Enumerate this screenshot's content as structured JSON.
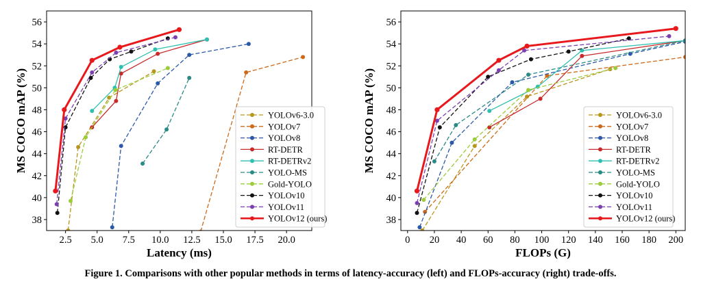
{
  "caption": {
    "prefix": "Figure 1.",
    "text": "Comparisons with other popular methods in terms of latency-accuracy (left) and FLOPs-accuracy (right) trade-offs."
  },
  "chart_data": [
    {
      "type": "line",
      "xlabel": "Latency (ms)",
      "ylabel": "MS COCO mAP (%)",
      "xlim": [
        1.0,
        22.0
      ],
      "ylim": [
        37.0,
        57.0
      ],
      "xticks": [
        2.5,
        5.0,
        7.5,
        10.0,
        12.5,
        15.0,
        17.5,
        20.0
      ],
      "xtick_labels": [
        "2.5",
        "5.0",
        "7.5",
        "10.0",
        "12.5",
        "15.0",
        "17.5",
        "20.0"
      ],
      "yticks": [
        38,
        40,
        42,
        44,
        46,
        48,
        50,
        52,
        54,
        56
      ],
      "grid": false,
      "legend_position": "lower-right",
      "series": [
        {
          "name": "YOLOv6-3.0",
          "color": "#b8961c",
          "style": "dashed",
          "points": [
            [
              2.7,
              37.0
            ],
            [
              3.5,
              44.6
            ],
            [
              5.95,
              49.1
            ],
            [
              9.5,
              51.5
            ]
          ]
        },
        {
          "name": "YOLOv7",
          "color": "#cc6a1a",
          "style": "dashed",
          "points": [
            [
              13.2,
              36.9
            ],
            [
              16.8,
              51.4
            ],
            [
              21.3,
              52.8
            ]
          ]
        },
        {
          "name": "YOLOv8",
          "color": "#2b58a8",
          "style": "dashed",
          "points": [
            [
              6.2,
              37.3
            ],
            [
              6.9,
              44.7
            ],
            [
              9.8,
              50.4
            ],
            [
              12.3,
              53.0
            ],
            [
              17.0,
              54.0
            ]
          ]
        },
        {
          "name": "RT-DETR",
          "color": "#c82a2a",
          "style": "solid",
          "points": [
            [
              4.6,
              46.4
            ],
            [
              6.5,
              48.8
            ],
            [
              6.9,
              51.3
            ],
            [
              9.8,
              53.1
            ],
            [
              13.7,
              54.4
            ]
          ]
        },
        {
          "name": "RT-DETRv2",
          "color": "#2fbfb0",
          "style": "solid",
          "points": [
            [
              4.6,
              47.9
            ],
            [
              6.4,
              50.0
            ],
            [
              6.9,
              51.9
            ],
            [
              9.6,
              53.5
            ],
            [
              13.7,
              54.4
            ]
          ]
        },
        {
          "name": "YOLO-MS",
          "color": "#2a8a86",
          "style": "dashed",
          "points": [
            [
              8.6,
              43.1
            ],
            [
              10.5,
              46.2
            ],
            [
              12.3,
              50.9
            ]
          ]
        },
        {
          "name": "Gold-YOLO",
          "color": "#9ccc3c",
          "style": "dashed",
          "points": [
            [
              2.9,
              39.7
            ],
            [
              4.1,
              45.5
            ],
            [
              6.45,
              49.8
            ],
            [
              10.6,
              51.8
            ]
          ]
        },
        {
          "name": "YOLOv10",
          "color": "#111111",
          "style": "dashed",
          "points": [
            [
              1.85,
              38.6
            ],
            [
              2.5,
              46.4
            ],
            [
              4.5,
              50.9
            ],
            [
              6.0,
              52.6
            ],
            [
              7.7,
              53.3
            ],
            [
              10.6,
              54.5
            ]
          ]
        },
        {
          "name": "YOLOv11",
          "color": "#7b3fb0",
          "style": "dashed",
          "points": [
            [
              1.8,
              39.4
            ],
            [
              2.5,
              47.2
            ],
            [
              4.6,
              51.4
            ],
            [
              6.5,
              53.2
            ],
            [
              11.2,
              54.6
            ]
          ]
        },
        {
          "name": "YOLOv12 (ours)",
          "color": "#e8191d",
          "style": "solid-bold",
          "points": [
            [
              1.7,
              40.6
            ],
            [
              2.4,
              48.0
            ],
            [
              4.6,
              52.5
            ],
            [
              6.8,
              53.7
            ],
            [
              11.5,
              55.3
            ]
          ]
        }
      ]
    },
    {
      "type": "line",
      "xlabel": "FLOPs (G)",
      "ylabel": "MS COCO mAP (%)",
      "xlim": [
        -5,
        207
      ],
      "ylim": [
        37.0,
        57.0
      ],
      "xticks": [
        0,
        20,
        40,
        60,
        80,
        100,
        120,
        140,
        160,
        180,
        200
      ],
      "xtick_labels": [
        "0",
        "20",
        "40",
        "60",
        "80",
        "100",
        "120",
        "140",
        "160",
        "180",
        "200"
      ],
      "yticks": [
        38,
        40,
        42,
        44,
        46,
        48,
        50,
        52,
        54,
        56
      ],
      "grid": false,
      "legend_position": "lower-right",
      "series": [
        {
          "name": "YOLOv6-3.0",
          "color": "#b8961c",
          "style": "dashed",
          "points": [
            [
              11,
              37.0
            ],
            [
              50,
              44.7
            ],
            [
              89,
              49.2
            ],
            [
              151,
              51.7
            ]
          ]
        },
        {
          "name": "YOLOv7",
          "color": "#cc6a1a",
          "style": "dashed",
          "points": [
            [
              13,
              38.7
            ],
            [
              104,
              51.1
            ],
            [
              207,
              52.8
            ]
          ]
        },
        {
          "name": "YOLOv8",
          "color": "#2b58a8",
          "style": "dashed",
          "points": [
            [
              9,
              37.3
            ],
            [
              33,
              45.0
            ],
            [
              78,
              50.5
            ],
            [
              166,
              53.1
            ],
            [
              207,
              54.2
            ]
          ]
        },
        {
          "name": "RT-DETR",
          "color": "#c82a2a",
          "style": "solid",
          "points": [
            [
              61,
              46.4
            ],
            [
              99,
              49.0
            ],
            [
              130,
              52.9
            ],
            [
              207,
              54.3
            ]
          ]
        },
        {
          "name": "RT-DETRv2",
          "color": "#2fbfb0",
          "style": "solid",
          "points": [
            [
              61,
              47.9
            ],
            [
              97,
              50.1
            ],
            [
              130,
              53.4
            ],
            [
              207,
              54.3
            ]
          ]
        },
        {
          "name": "YOLO-MS",
          "color": "#2a8a86",
          "style": "dashed",
          "points": [
            [
              20,
              43.3
            ],
            [
              36,
              46.6
            ],
            [
              90,
              51.2
            ],
            [
              207,
              54.3
            ]
          ]
        },
        {
          "name": "Gold-YOLO",
          "color": "#9ccc3c",
          "style": "dashed",
          "points": [
            [
              12,
              39.8
            ],
            [
              50,
              45.3
            ],
            [
              90,
              49.8
            ],
            [
              155,
              51.8
            ]
          ]
        },
        {
          "name": "YOLOv10",
          "color": "#111111",
          "style": "dashed",
          "points": [
            [
              7,
              38.6
            ],
            [
              24,
              46.4
            ],
            [
              60,
              51.0
            ],
            [
              92,
              52.6
            ],
            [
              120,
              53.3
            ],
            [
              165,
              54.5
            ]
          ]
        },
        {
          "name": "YOLOv11",
          "color": "#7b3fb0",
          "style": "dashed",
          "points": [
            [
              7,
              39.5
            ],
            [
              22,
              47.0
            ],
            [
              68,
              51.6
            ],
            [
              87,
              53.4
            ],
            [
              195,
              54.7
            ]
          ]
        },
        {
          "name": "YOLOv12 (ours)",
          "color": "#e8191d",
          "style": "solid-bold",
          "points": [
            [
              7,
              40.6
            ],
            [
              22,
              48.0
            ],
            [
              68,
              52.5
            ],
            [
              89,
              53.8
            ],
            [
              200,
              55.4
            ]
          ]
        }
      ]
    }
  ]
}
